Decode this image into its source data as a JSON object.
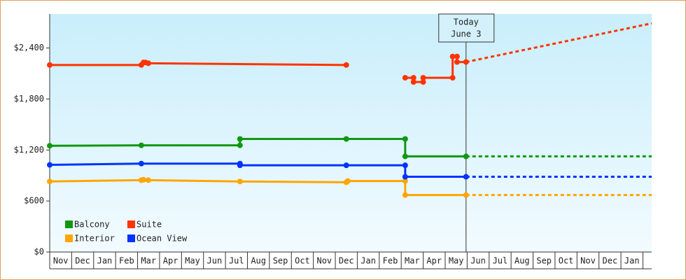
{
  "chart_data": {
    "type": "line",
    "xlim": [
      0,
      27.4
    ],
    "xticks": [
      {
        "value": 0.5,
        "label": "Nov"
      },
      {
        "value": 1.5,
        "label": "Dec"
      },
      {
        "value": 2.5,
        "label": "Jan"
      },
      {
        "value": 3.5,
        "label": "Feb"
      },
      {
        "value": 4.5,
        "label": "Mar"
      },
      {
        "value": 5.5,
        "label": "Apr"
      },
      {
        "value": 6.5,
        "label": "May"
      },
      {
        "value": 7.5,
        "label": "Jun"
      },
      {
        "value": 8.5,
        "label": "Jul"
      },
      {
        "value": 9.5,
        "label": "Aug"
      },
      {
        "value": 10.5,
        "label": "Sep"
      },
      {
        "value": 11.5,
        "label": "Oct"
      },
      {
        "value": 12.5,
        "label": "Nov"
      },
      {
        "value": 13.5,
        "label": "Dec"
      },
      {
        "value": 14.5,
        "label": "Jan"
      },
      {
        "value": 15.5,
        "label": "Feb"
      },
      {
        "value": 16.5,
        "label": "Mar"
      },
      {
        "value": 17.5,
        "label": "Apr"
      },
      {
        "value": 18.5,
        "label": "May"
      },
      {
        "value": 19.5,
        "label": "Jun"
      },
      {
        "value": 20.5,
        "label": "Jul"
      },
      {
        "value": 21.5,
        "label": "Aug"
      },
      {
        "value": 22.5,
        "label": "Sep"
      },
      {
        "value": 23.5,
        "label": "Oct"
      },
      {
        "value": 24.5,
        "label": "Nov"
      },
      {
        "value": 25.5,
        "label": "Dec"
      },
      {
        "value": 26.5,
        "label": "Jan"
      }
    ],
    "ylim": [
      0,
      2800
    ],
    "yticks": [
      {
        "value": 0,
        "label": "$0"
      },
      {
        "value": 600,
        "label": "$600"
      },
      {
        "value": 1200,
        "label": "$1,200"
      },
      {
        "value": 1800,
        "label": "$1,800"
      },
      {
        "value": 2400,
        "label": "$2,400"
      }
    ],
    "legend": "lower-left",
    "annotation": {
      "x": 18.95,
      "lines": [
        "Today",
        "June 3"
      ]
    },
    "series": [
      {
        "name": "Balcony",
        "color": "#109810",
        "x": [
          0,
          4.17,
          8.66,
          8.66,
          13.5,
          16.18,
          16.18,
          18.95
        ],
        "values": [
          1250,
          1255,
          1255,
          1330,
          1330,
          1330,
          1125,
          1125
        ],
        "projection": {
          "x": [
            18.95,
            27.4
          ],
          "values": [
            1125,
            1125
          ]
        }
      },
      {
        "name": "Suite",
        "color": "#ff3300",
        "x": [
          0,
          4.17,
          4.27,
          4.36,
          4.49,
          13.5,
          15,
          16.18,
          16.56,
          16.56,
          17.0,
          17.0,
          18.34,
          18.34,
          18.54,
          18.54,
          18.95
        ],
        "values": [
          2200,
          2200,
          2230,
          2230,
          2220,
          2200,
          null,
          2050,
          2050,
          2000,
          2000,
          2050,
          2050,
          2300,
          2300,
          2235,
          2235
        ],
        "projection": {
          "x": [
            18.95,
            27.4
          ],
          "values": [
            2235,
            2690
          ]
        }
      },
      {
        "name": "Interior",
        "color": "#ffa500",
        "x": [
          0,
          4.17,
          4.27,
          4.49,
          8.66,
          13.5,
          13.57,
          16.18,
          16.18,
          18.95
        ],
        "values": [
          830,
          845,
          850,
          845,
          830,
          820,
          835,
          835,
          670,
          670
        ],
        "projection": {
          "x": [
            18.95,
            27.4
          ],
          "values": [
            670,
            670
          ]
        }
      },
      {
        "name": "Ocean View",
        "color": "#0033ff",
        "x": [
          0,
          4.17,
          8.66,
          8.66,
          13.5,
          16.18,
          16.18,
          18.95
        ],
        "values": [
          1025,
          1040,
          1040,
          1020,
          1020,
          1020,
          885,
          885
        ],
        "projection": {
          "x": [
            18.95,
            27.4
          ],
          "values": [
            885,
            885
          ]
        }
      }
    ]
  }
}
